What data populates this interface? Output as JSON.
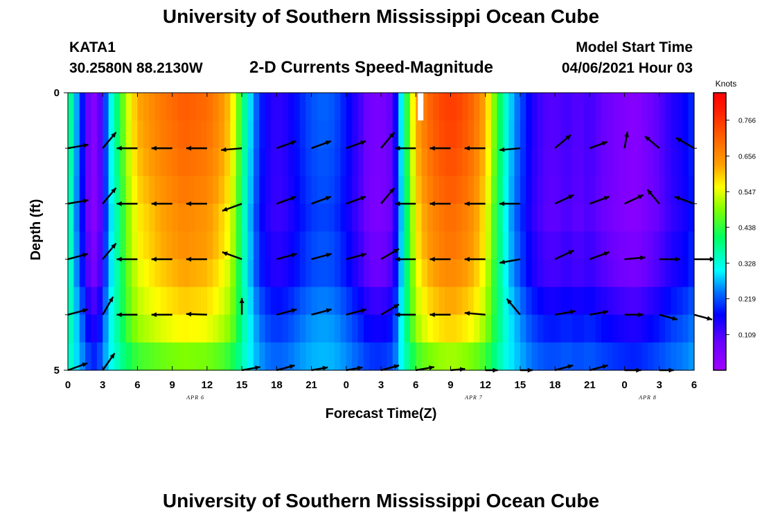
{
  "header": {
    "title": "University of Southern Mississippi Ocean Cube",
    "station_id": "KATA1",
    "station_coords": "30.2580N  88.2130W",
    "chart_title": "2-D Currents Speed-Magnitude",
    "model_label": "Model Start Time",
    "model_time": "04/06/2021 Hour 03",
    "footer_title": "University of Southern Mississippi Ocean Cube"
  },
  "chart_data": {
    "type": "heatmap",
    "title": "2-D Currents Speed-Magnitude",
    "xlabel": "Forecast Time(Z)",
    "ylabel": "Depth (ft)",
    "x_tick_labels": [
      "0",
      "3",
      "6",
      "9",
      "12",
      "15",
      "18",
      "21",
      "0",
      "3",
      "6",
      "9",
      "12",
      "15",
      "18",
      "21",
      "0",
      "3",
      "6"
    ],
    "x_range_hours": [
      0,
      54
    ],
    "y_tick_labels": [
      "0",
      "5"
    ],
    "y_range_ft": [
      0,
      5
    ],
    "date_labels": [
      {
        "text": "APR 6",
        "hour": 11
      },
      {
        "text": "APR 7",
        "hour": 35
      },
      {
        "text": "APR 8",
        "hour": 50
      }
    ],
    "colorbar": {
      "unit": "Knots",
      "range": [
        0.0,
        0.85
      ],
      "tick_labels": [
        "0.766",
        "0.656",
        "0.547",
        "0.438",
        "0.328",
        "0.219",
        "0.109"
      ],
      "tick_values": [
        0.766,
        0.656,
        0.547,
        0.438,
        0.328,
        0.219,
        0.109
      ]
    },
    "depth_layers_ft": [
      0.25,
      0.75,
      1.25,
      1.75,
      2.25,
      2.75,
      3.25,
      3.75,
      4.25,
      4.75
    ],
    "speed_profile": {
      "hours": [
        0,
        0.5,
        1,
        1.5,
        2,
        2.5,
        3,
        3.5,
        4,
        4.5,
        5,
        6,
        7,
        8,
        9,
        10,
        11,
        12,
        13,
        14,
        14.5,
        15,
        15.5,
        16,
        17,
        18,
        19,
        20,
        21,
        22,
        23,
        24,
        25,
        26,
        27,
        28,
        28.5,
        29,
        29.5,
        30,
        31,
        32,
        33,
        34,
        35,
        36,
        37,
        38,
        39,
        40,
        41,
        42,
        43,
        44,
        45,
        46,
        47,
        48,
        49,
        50,
        51,
        52,
        53,
        54
      ],
      "surface_knots": [
        0.44,
        0.3,
        0.23,
        0.13,
        0.04,
        0.05,
        0.15,
        0.28,
        0.36,
        0.43,
        0.52,
        0.62,
        0.65,
        0.68,
        0.7,
        0.72,
        0.71,
        0.7,
        0.66,
        0.6,
        0.52,
        0.42,
        0.33,
        0.25,
        0.16,
        0.13,
        0.15,
        0.19,
        0.22,
        0.23,
        0.22,
        0.18,
        0.13,
        0.07,
        0.06,
        0.1,
        0.22,
        0.38,
        0.5,
        0.62,
        0.7,
        0.74,
        0.76,
        0.74,
        0.7,
        0.62,
        0.45,
        0.3,
        0.22,
        0.15,
        0.11,
        0.1,
        0.12,
        0.1,
        0.12,
        0.09,
        0.07,
        0.05,
        0.04,
        0.07,
        0.1,
        0.14,
        0.16,
        0.2
      ]
    },
    "depth_factors": [
      1.0,
      0.99,
      0.97,
      0.95,
      0.92,
      0.88,
      0.83,
      0.72,
      0.62,
      0.45
    ],
    "depth_offsets": [
      0,
      0,
      0,
      0,
      0,
      0.02,
      0.03,
      0.08,
      0.12,
      0.17
    ],
    "missing_cell": {
      "hour": 30,
      "depth_ft": 0.25
    },
    "vector_rows_ft": [
      1.0,
      2.0,
      3.0,
      4.0,
      5.0
    ],
    "vectors": [
      {
        "hours": [
          0,
          3,
          6,
          9,
          12,
          15,
          18,
          21,
          24,
          27,
          30,
          33,
          36,
          39,
          42,
          45,
          48,
          51,
          54
        ],
        "angles_deg": [
          10,
          50,
          180,
          180,
          180,
          185,
          20,
          20,
          20,
          50,
          180,
          180,
          180,
          185,
          40,
          20,
          80,
          140,
          150
        ],
        "lengths": [
          1,
          1,
          1,
          1,
          1,
          1,
          1,
          1,
          1,
          1,
          1,
          1,
          1,
          1,
          1,
          0.9,
          0.8,
          0.9,
          1
        ]
      },
      {
        "hours": [
          0,
          3,
          6,
          9,
          12,
          15,
          18,
          21,
          24,
          27,
          30,
          33,
          36,
          39,
          42,
          45,
          48,
          51,
          54
        ],
        "angles_deg": [
          10,
          50,
          180,
          180,
          180,
          200,
          20,
          20,
          20,
          50,
          180,
          180,
          180,
          180,
          25,
          20,
          25,
          130,
          160
        ],
        "lengths": [
          1,
          1,
          1,
          1,
          1,
          1,
          1,
          1,
          1,
          1,
          1,
          1,
          1,
          1,
          1,
          1,
          1,
          0.9,
          1
        ]
      },
      {
        "hours": [
          0,
          3,
          6,
          9,
          12,
          15,
          18,
          21,
          24,
          27,
          30,
          33,
          36,
          39,
          42,
          45,
          48,
          51,
          54
        ],
        "angles_deg": [
          15,
          50,
          180,
          180,
          180,
          160,
          15,
          15,
          15,
          30,
          180,
          180,
          180,
          190,
          25,
          20,
          5,
          0,
          0
        ],
        "lengths": [
          1,
          1,
          1,
          1,
          1,
          1,
          1,
          1,
          1,
          1,
          1,
          1,
          1,
          1,
          1,
          1,
          1,
          1,
          1
        ]
      },
      {
        "hours": [
          0,
          3,
          6,
          9,
          12,
          15,
          18,
          21,
          24,
          27,
          30,
          33,
          36,
          39,
          42,
          45,
          48,
          51,
          54
        ],
        "angles_deg": [
          15,
          60,
          180,
          180,
          178,
          90,
          15,
          15,
          15,
          30,
          180,
          180,
          175,
          130,
          10,
          10,
          0,
          -15,
          -15
        ],
        "lengths": [
          1,
          1,
          1,
          1,
          1,
          0.8,
          1,
          1,
          1,
          1,
          1,
          1,
          1,
          1,
          1,
          0.9,
          0.9,
          0.9,
          0.9
        ]
      },
      {
        "hours": [
          0,
          3,
          15,
          18,
          21,
          24,
          27,
          30,
          33,
          36,
          39,
          42,
          45,
          48,
          51
        ],
        "angles_deg": [
          20,
          55,
          10,
          15,
          10,
          10,
          15,
          10,
          5,
          0,
          0,
          15,
          15,
          0,
          0
        ],
        "lengths": [
          1,
          1,
          0.9,
          0.9,
          0.8,
          0.8,
          0.9,
          0.9,
          0.7,
          0.6,
          0.6,
          0.9,
          0.9,
          0.8,
          0.7
        ]
      }
    ]
  }
}
